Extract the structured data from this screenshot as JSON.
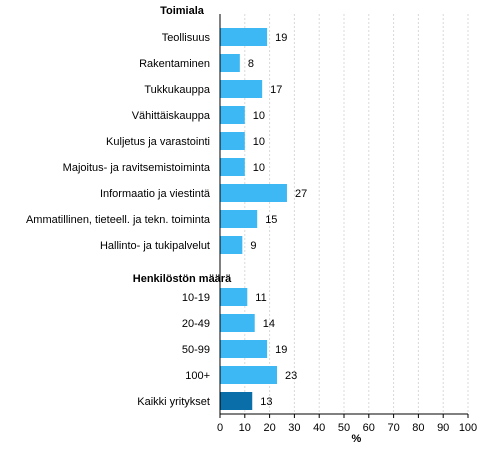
{
  "chart_data": {
    "type": "bar",
    "orientation": "horizontal",
    "xlabel": "%",
    "xlim": [
      0,
      100
    ],
    "xticks": [
      0,
      10,
      20,
      30,
      40,
      50,
      60,
      70,
      80,
      90,
      100
    ],
    "grid": "vertical dashed",
    "bar_color": "#3db8f5",
    "total_bar_color": "#0a6ea8",
    "groups": [
      {
        "heading": "Toimiala",
        "items": [
          {
            "label": "Teollisuus",
            "value": 19
          },
          {
            "label": "Rakentaminen",
            "value": 8
          },
          {
            "label": "Tukkukauppa",
            "value": 17
          },
          {
            "label": "Vähittäiskauppa",
            "value": 10
          },
          {
            "label": "Kuljetus ja varastointi",
            "value": 10
          },
          {
            "label": "Majoitus- ja ravitsemistoiminta",
            "value": 10
          },
          {
            "label": "Informaatio ja viestintä",
            "value": 27
          },
          {
            "label": "Ammatillinen, tieteell. ja tekn. toiminta",
            "value": 15
          },
          {
            "label": "Hallinto- ja tukipalvelut",
            "value": 9
          }
        ]
      },
      {
        "heading": "Henkilöstön määrä",
        "items": [
          {
            "label": "10-19",
            "value": 11
          },
          {
            "label": "20-49",
            "value": 14
          },
          {
            "label": "50-99",
            "value": 19
          },
          {
            "label": "100+",
            "value": 23
          },
          {
            "label": "Kaikki yritykset",
            "value": 13,
            "highlight": true
          }
        ]
      }
    ]
  }
}
